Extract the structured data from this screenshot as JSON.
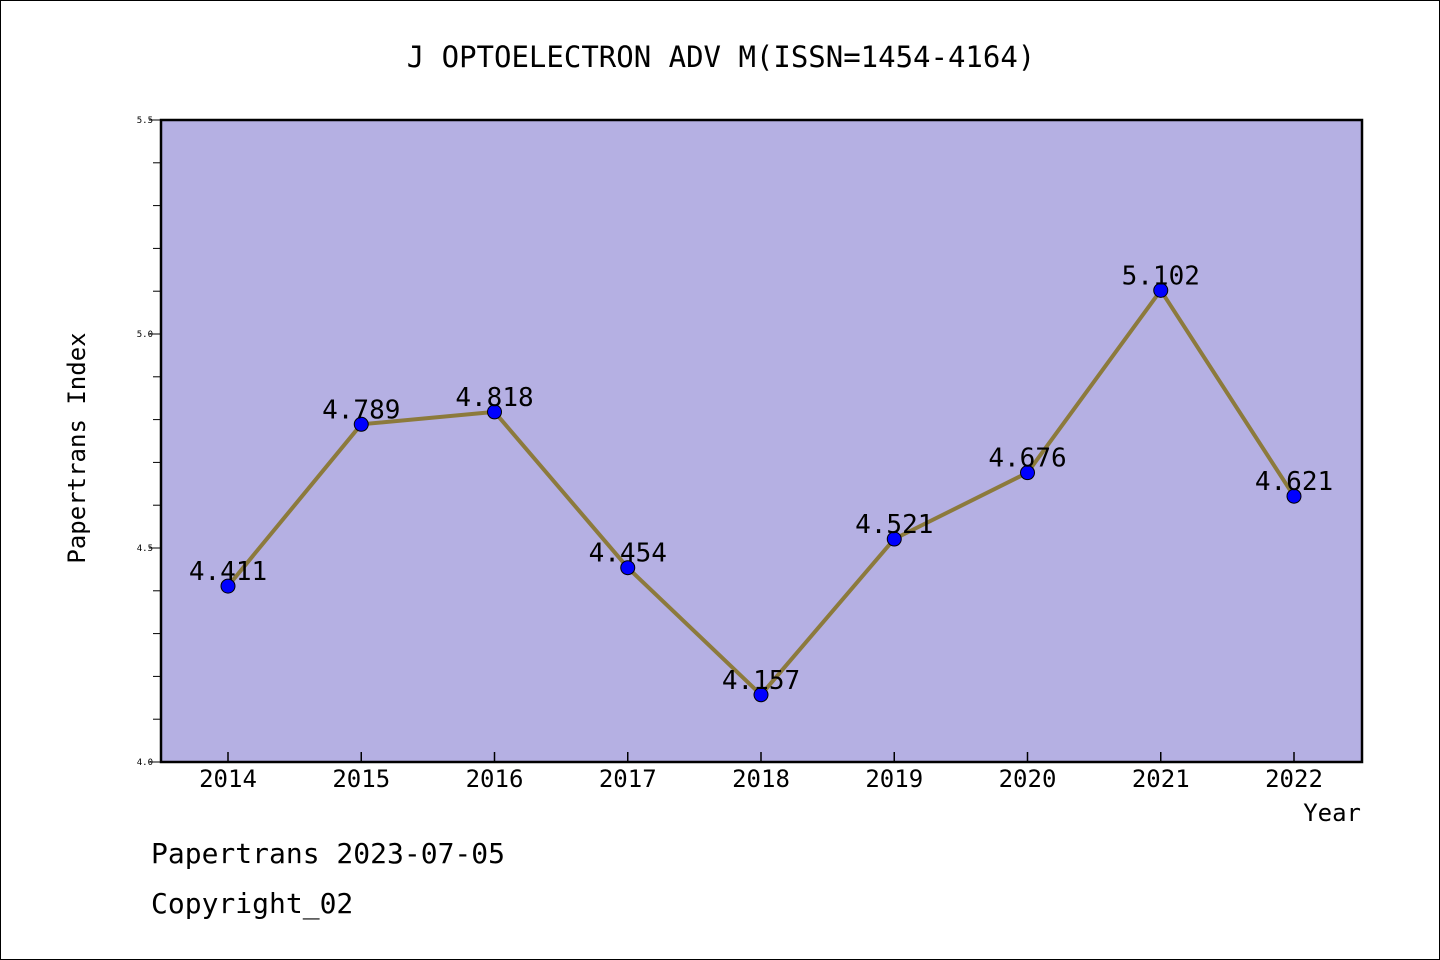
{
  "chart_data": {
    "type": "line",
    "title": "J OPTOELECTRON ADV M(ISSN=1454-4164)",
    "xlabel": "Year",
    "ylabel": "Papertrans Index",
    "categories": [
      "2014",
      "2015",
      "2016",
      "2017",
      "2018",
      "2019",
      "2020",
      "2021",
      "2022"
    ],
    "series": [
      {
        "values": [
          4.411,
          4.789,
          4.818,
          4.454,
          4.157,
          4.521,
          4.676,
          5.102,
          4.621
        ],
        "labels": [
          "4.411",
          "4.789",
          "4.818",
          "4.454",
          "4.157",
          "4.521",
          "4.676",
          "5.102",
          "4.621"
        ]
      }
    ],
    "ylim": [
      4.0,
      5.5
    ],
    "yticks": [
      "4.0",
      "4.5",
      "5.0",
      "5.5"
    ],
    "grid": false,
    "colors": {
      "plot_background": "#b5b0e3",
      "line": "#8c7a3c",
      "marker": "#0000ff"
    }
  },
  "footer": {
    "line1": "Papertrans 2023-07-05",
    "line2": "Copyright_02"
  }
}
